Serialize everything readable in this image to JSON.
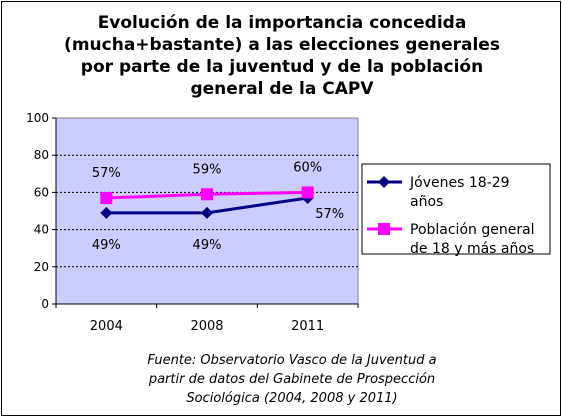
{
  "chart_data": {
    "type": "line",
    "title_lines": [
      "Evolución de la importancia concedida",
      "(mucha+bastante) a las elecciones generales",
      "por parte de la juventud y de la población",
      "general de la CAPV"
    ],
    "x": [
      "2004",
      "2008",
      "2011"
    ],
    "ylim": [
      0,
      100
    ],
    "yticks": [
      0,
      20,
      40,
      60,
      80,
      100
    ],
    "grid": true,
    "legend_position": "right",
    "series": [
      {
        "name_lines": [
          "Jóvenes 18-29",
          "años"
        ],
        "values": [
          49,
          49,
          57
        ],
        "labels": [
          "49%",
          "49%",
          "57%"
        ],
        "color": "#000080",
        "marker": "diamond"
      },
      {
        "name_lines": [
          "Población general",
          "de 18 y más años"
        ],
        "values": [
          57,
          59,
          60
        ],
        "labels": [
          "57%",
          "59%",
          "60%"
        ],
        "color": "#ff00ff",
        "marker": "square"
      }
    ]
  },
  "colors": {
    "plot_background": "#ccccff",
    "axis": "#000000"
  },
  "source_lines": [
    "Fuente: Observatorio Vasco de la Juventud a",
    "partir de datos del Gabinete de Prospección",
    "Sociológica (2004, 2008 y 2011)"
  ]
}
